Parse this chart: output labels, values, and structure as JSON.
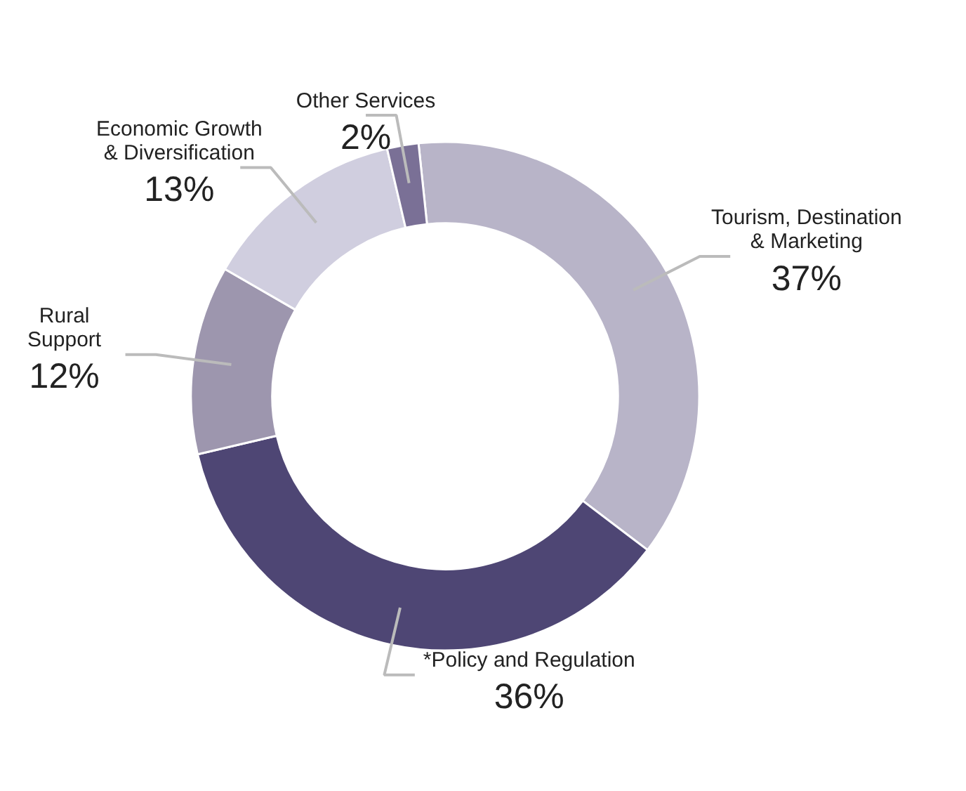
{
  "chart_data": {
    "type": "donut",
    "categories": [
      "Tourism, Destination\n& Marketing",
      "*Policy and Regulation",
      "Rural\nSupport",
      "Economic Growth\n& Diversification",
      "Other Services"
    ],
    "values": [
      37,
      36,
      12,
      13,
      2
    ],
    "value_labels": [
      "37%",
      "36%",
      "12%",
      "13%",
      "2%"
    ],
    "colors": [
      "#b8b4c8",
      "#4e4674",
      "#9d96ae",
      "#d0cedf",
      "#7a7096"
    ]
  }
}
